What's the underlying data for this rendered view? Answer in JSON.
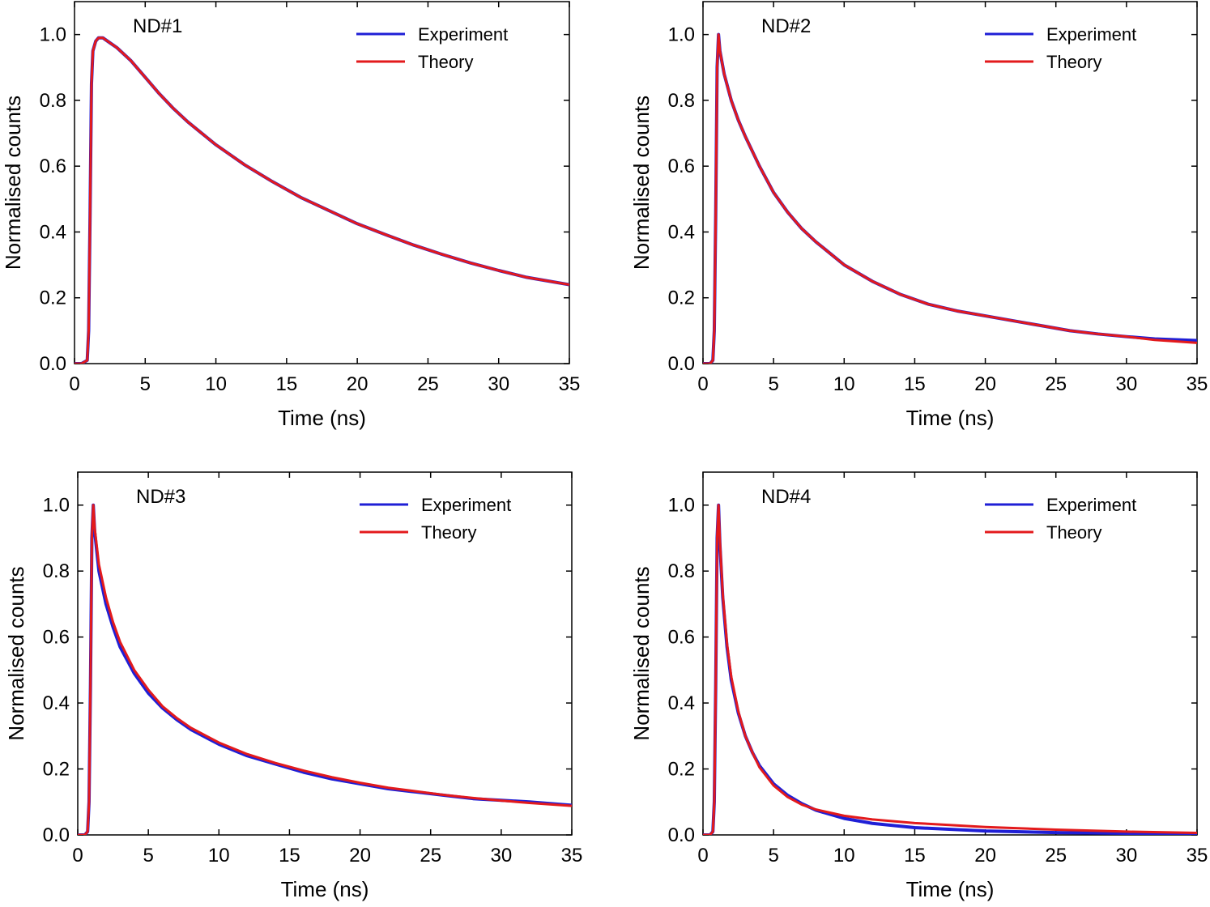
{
  "chart_data": [
    {
      "type": "line",
      "panel_label": "ND#1",
      "xlabel": "Time (ns)",
      "ylabel": "Normalised counts",
      "xlim": [
        0,
        35
      ],
      "ylim": [
        0,
        1.1
      ],
      "xticks": [
        0,
        5,
        10,
        15,
        20,
        25,
        30,
        35
      ],
      "yticks": [
        0.0,
        0.2,
        0.4,
        0.6,
        0.8,
        1.0
      ],
      "ytick_labels": [
        "0.0",
        "0.2",
        "0.4",
        "0.6",
        "0.8",
        "1.0"
      ],
      "legend": "top-right",
      "series": [
        {
          "name": "Experiment",
          "color": "#1f1fd6",
          "x": [
            0,
            0.5,
            0.9,
            1.0,
            1.1,
            1.2,
            1.3,
            1.5,
            1.7,
            2,
            2.5,
            3,
            4,
            5,
            6,
            7,
            8,
            9,
            10,
            12,
            14,
            16,
            18,
            20,
            22,
            24,
            26,
            28,
            30,
            32,
            35
          ],
          "y": [
            0.0,
            0.0,
            0.01,
            0.1,
            0.45,
            0.85,
            0.95,
            0.98,
            0.99,
            0.99,
            0.975,
            0.96,
            0.92,
            0.87,
            0.82,
            0.775,
            0.735,
            0.7,
            0.665,
            0.605,
            0.553,
            0.505,
            0.465,
            0.425,
            0.392,
            0.36,
            0.332,
            0.306,
            0.283,
            0.262,
            0.24
          ]
        },
        {
          "name": "Theory",
          "color": "#e31a1c",
          "x": [
            0,
            0.5,
            0.9,
            1.0,
            1.1,
            1.2,
            1.3,
            1.5,
            1.7,
            2,
            2.5,
            3,
            4,
            5,
            6,
            7,
            8,
            9,
            10,
            12,
            14,
            16,
            18,
            20,
            22,
            24,
            26,
            28,
            30,
            32,
            35
          ],
          "y": [
            0.0,
            0.0,
            0.01,
            0.1,
            0.45,
            0.85,
            0.95,
            0.98,
            0.99,
            0.99,
            0.975,
            0.96,
            0.92,
            0.87,
            0.82,
            0.775,
            0.735,
            0.7,
            0.665,
            0.605,
            0.553,
            0.505,
            0.465,
            0.425,
            0.392,
            0.36,
            0.332,
            0.306,
            0.283,
            0.262,
            0.24
          ]
        }
      ]
    },
    {
      "type": "line",
      "panel_label": "ND#2",
      "xlabel": "Time (ns)",
      "ylabel": "Normalised counts",
      "xlim": [
        0,
        35
      ],
      "ylim": [
        0,
        1.1
      ],
      "xticks": [
        0,
        5,
        10,
        15,
        20,
        25,
        30,
        35
      ],
      "yticks": [
        0.0,
        0.2,
        0.4,
        0.6,
        0.8,
        1.0
      ],
      "ytick_labels": [
        "0.0",
        "0.2",
        "0.4",
        "0.6",
        "0.8",
        "1.0"
      ],
      "legend": "top-right",
      "series": [
        {
          "name": "Experiment",
          "color": "#1f1fd6",
          "x": [
            0,
            0.5,
            0.7,
            0.8,
            0.9,
            1.0,
            1.1,
            1.2,
            1.5,
            2,
            2.5,
            3,
            4,
            5,
            6,
            7,
            8,
            10,
            12,
            14,
            16,
            18,
            20,
            22,
            24,
            26,
            28,
            30,
            32,
            35
          ],
          "y": [
            0.0,
            0.0,
            0.01,
            0.1,
            0.45,
            0.9,
            1.0,
            0.95,
            0.88,
            0.8,
            0.74,
            0.69,
            0.6,
            0.52,
            0.46,
            0.41,
            0.37,
            0.3,
            0.25,
            0.21,
            0.18,
            0.16,
            0.145,
            0.13,
            0.115,
            0.1,
            0.09,
            0.082,
            0.075,
            0.07
          ]
        },
        {
          "name": "Theory",
          "color": "#e31a1c",
          "x": [
            0,
            0.5,
            0.7,
            0.8,
            0.9,
            1.0,
            1.1,
            1.2,
            1.5,
            2,
            2.5,
            3,
            4,
            5,
            6,
            7,
            8,
            10,
            12,
            14,
            16,
            18,
            20,
            22,
            24,
            26,
            28,
            30,
            32,
            35
          ],
          "y": [
            0.0,
            0.0,
            0.01,
            0.1,
            0.45,
            0.9,
            1.0,
            0.95,
            0.88,
            0.8,
            0.74,
            0.69,
            0.6,
            0.52,
            0.46,
            0.41,
            0.37,
            0.3,
            0.25,
            0.21,
            0.18,
            0.16,
            0.145,
            0.13,
            0.115,
            0.1,
            0.09,
            0.082,
            0.072,
            0.063
          ]
        }
      ]
    },
    {
      "type": "line",
      "panel_label": "ND#3",
      "xlabel": "Time (ns)",
      "ylabel": "Normalised counts",
      "xlim": [
        0,
        35
      ],
      "ylim": [
        0,
        1.1
      ],
      "xticks": [
        0,
        5,
        10,
        15,
        20,
        25,
        30,
        35
      ],
      "yticks": [
        0.0,
        0.2,
        0.4,
        0.6,
        0.8,
        1.0
      ],
      "ytick_labels": [
        "0.0",
        "0.2",
        "0.4",
        "0.6",
        "0.8",
        "1.0"
      ],
      "legend": "top-right",
      "series": [
        {
          "name": "Experiment",
          "color": "#1f1fd6",
          "x": [
            0,
            0.5,
            0.7,
            0.8,
            0.9,
            1.0,
            1.1,
            1.2,
            1.5,
            2,
            2.5,
            3,
            4,
            5,
            6,
            7,
            8,
            10,
            12,
            14,
            16,
            18,
            20,
            22,
            24,
            26,
            28,
            30,
            32,
            35
          ],
          "y": [
            0.0,
            0.0,
            0.01,
            0.1,
            0.45,
            0.9,
            1.0,
            0.92,
            0.8,
            0.7,
            0.63,
            0.57,
            0.49,
            0.43,
            0.385,
            0.35,
            0.32,
            0.275,
            0.24,
            0.215,
            0.19,
            0.17,
            0.155,
            0.14,
            0.13,
            0.12,
            0.11,
            0.105,
            0.1,
            0.09
          ]
        },
        {
          "name": "Theory",
          "color": "#e31a1c",
          "x": [
            0,
            0.5,
            0.7,
            0.8,
            0.9,
            1.0,
            1.1,
            1.2,
            1.5,
            2,
            2.5,
            3,
            4,
            5,
            6,
            7,
            8,
            10,
            12,
            14,
            16,
            18,
            20,
            22,
            24,
            26,
            28,
            30,
            32,
            35
          ],
          "y": [
            0.0,
            0.0,
            0.01,
            0.1,
            0.45,
            0.9,
            1.0,
            0.93,
            0.82,
            0.72,
            0.645,
            0.585,
            0.5,
            0.44,
            0.39,
            0.355,
            0.325,
            0.28,
            0.245,
            0.218,
            0.195,
            0.175,
            0.158,
            0.143,
            0.132,
            0.121,
            0.112,
            0.104,
            0.097,
            0.088
          ]
        }
      ]
    },
    {
      "type": "line",
      "panel_label": "ND#4",
      "xlabel": "Time (ns)",
      "ylabel": "Normalised counts",
      "xlim": [
        0,
        35
      ],
      "ylim": [
        0,
        1.1
      ],
      "xticks": [
        0,
        5,
        10,
        15,
        20,
        25,
        30,
        35
      ],
      "yticks": [
        0.0,
        0.2,
        0.4,
        0.6,
        0.8,
        1.0
      ],
      "ytick_labels": [
        "0.0",
        "0.2",
        "0.4",
        "0.6",
        "0.8",
        "1.0"
      ],
      "legend": "top-right",
      "series": [
        {
          "name": "Experiment",
          "color": "#1f1fd6",
          "x": [
            0,
            0.5,
            0.7,
            0.8,
            0.9,
            1.0,
            1.1,
            1.2,
            1.4,
            1.7,
            2,
            2.5,
            3,
            3.5,
            4,
            5,
            6,
            7,
            8,
            10,
            12,
            15,
            20,
            25,
            30,
            35
          ],
          "y": [
            0.0,
            0.0,
            0.01,
            0.1,
            0.45,
            0.9,
            1.0,
            0.88,
            0.72,
            0.57,
            0.47,
            0.37,
            0.3,
            0.25,
            0.21,
            0.155,
            0.12,
            0.095,
            0.075,
            0.05,
            0.035,
            0.022,
            0.012,
            0.007,
            0.005,
            0.004
          ]
        },
        {
          "name": "Theory",
          "color": "#e31a1c",
          "x": [
            0,
            0.5,
            0.7,
            0.8,
            0.9,
            1.0,
            1.1,
            1.2,
            1.4,
            1.7,
            2,
            2.5,
            3,
            3.5,
            4,
            5,
            6,
            7,
            8,
            10,
            12,
            15,
            20,
            25,
            30,
            35
          ],
          "y": [
            0.0,
            0.0,
            0.01,
            0.1,
            0.45,
            0.9,
            1.0,
            0.89,
            0.73,
            0.58,
            0.48,
            0.375,
            0.3,
            0.25,
            0.205,
            0.15,
            0.115,
            0.092,
            0.077,
            0.058,
            0.047,
            0.036,
            0.024,
            0.016,
            0.01,
            0.006
          ]
        }
      ]
    }
  ]
}
